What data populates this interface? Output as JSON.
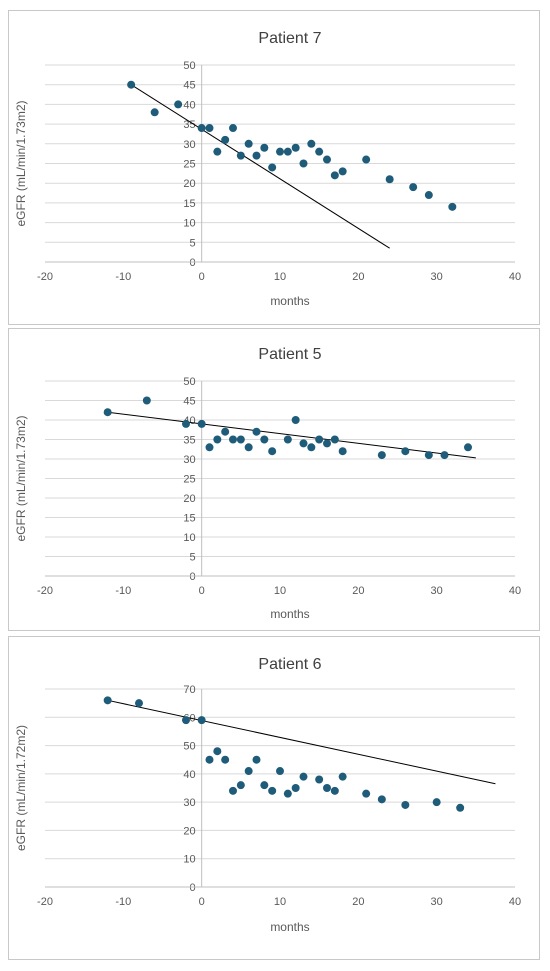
{
  "chart_data": [
    {
      "type": "scatter",
      "title": "Patient 7",
      "xlabel": "months",
      "ylabel": "eGFR (mL/min/1.73m2)",
      "xlim": [
        -20,
        40
      ],
      "ylim": [
        0,
        50
      ],
      "xticks": [
        -20,
        -10,
        0,
        10,
        20,
        30,
        40
      ],
      "yticks": [
        0,
        5,
        10,
        15,
        20,
        25,
        30,
        35,
        40,
        45,
        50
      ],
      "grid": "horizontal",
      "marker_color": "#1f5c7a",
      "points": [
        [
          -9,
          45
        ],
        [
          -6,
          38
        ],
        [
          -3,
          40
        ],
        [
          0,
          34
        ],
        [
          1,
          34
        ],
        [
          2,
          28
        ],
        [
          3,
          31
        ],
        [
          4,
          34
        ],
        [
          5,
          27
        ],
        [
          6,
          30
        ],
        [
          7,
          27
        ],
        [
          8,
          29
        ],
        [
          9,
          24
        ],
        [
          10,
          28
        ],
        [
          11,
          28
        ],
        [
          12,
          29
        ],
        [
          13,
          25
        ],
        [
          14,
          30
        ],
        [
          15,
          28
        ],
        [
          16,
          26
        ],
        [
          17,
          22
        ],
        [
          18,
          23
        ],
        [
          21,
          26
        ],
        [
          24,
          21
        ],
        [
          27,
          19
        ],
        [
          29,
          17
        ],
        [
          32,
          14
        ]
      ],
      "trendline": [
        [
          -9,
          45
        ],
        [
          24,
          3.5
        ]
      ]
    },
    {
      "type": "scatter",
      "title": "Patient 5",
      "xlabel": "months",
      "ylabel": "eGFR (mL/min/1.73m2)",
      "xlim": [
        -20,
        40
      ],
      "ylim": [
        0,
        50
      ],
      "xticks": [
        -20,
        -10,
        0,
        10,
        20,
        30,
        40
      ],
      "yticks": [
        0,
        5,
        10,
        15,
        20,
        25,
        30,
        35,
        40,
        45,
        50
      ],
      "grid": "horizontal",
      "marker_color": "#1f5c7a",
      "points": [
        [
          -12,
          42
        ],
        [
          -7,
          45
        ],
        [
          -2,
          39
        ],
        [
          0,
          39
        ],
        [
          1,
          33
        ],
        [
          2,
          35
        ],
        [
          3,
          37
        ],
        [
          4,
          35
        ],
        [
          5,
          35
        ],
        [
          6,
          33
        ],
        [
          7,
          37
        ],
        [
          8,
          35
        ],
        [
          9,
          32
        ],
        [
          11,
          35
        ],
        [
          12,
          40
        ],
        [
          13,
          34
        ],
        [
          14,
          33
        ],
        [
          15,
          35
        ],
        [
          16,
          34
        ],
        [
          17,
          35
        ],
        [
          18,
          32
        ],
        [
          23,
          31
        ],
        [
          26,
          32
        ],
        [
          29,
          31
        ],
        [
          31,
          31
        ],
        [
          34,
          33
        ]
      ],
      "trendline": [
        [
          -12,
          42
        ],
        [
          35,
          30.3
        ]
      ]
    },
    {
      "type": "scatter",
      "title": "Patient 6",
      "xlabel": "months",
      "ylabel": "eGFR (mL/min/1.72m2)",
      "xlim": [
        -20,
        40
      ],
      "ylim": [
        0,
        70
      ],
      "xticks": [
        -20,
        -10,
        0,
        10,
        20,
        30,
        40
      ],
      "yticks": [
        0,
        10,
        20,
        30,
        40,
        50,
        60,
        70
      ],
      "grid": "horizontal",
      "marker_color": "#1f5c7a",
      "points": [
        [
          -12,
          66
        ],
        [
          -8,
          65
        ],
        [
          -2,
          59
        ],
        [
          0,
          59
        ],
        [
          1,
          45
        ],
        [
          2,
          48
        ],
        [
          3,
          45
        ],
        [
          4,
          34
        ],
        [
          5,
          36
        ],
        [
          6,
          41
        ],
        [
          7,
          45
        ],
        [
          8,
          36
        ],
        [
          9,
          34
        ],
        [
          10,
          41
        ],
        [
          11,
          33
        ],
        [
          12,
          35
        ],
        [
          13,
          39
        ],
        [
          15,
          38
        ],
        [
          16,
          35
        ],
        [
          17,
          34
        ],
        [
          18,
          39
        ],
        [
          21,
          33
        ],
        [
          23,
          31
        ],
        [
          26,
          29
        ],
        [
          30,
          30
        ],
        [
          33,
          28
        ]
      ],
      "trendline": [
        [
          -12,
          66
        ],
        [
          37.5,
          36.5
        ]
      ]
    }
  ]
}
